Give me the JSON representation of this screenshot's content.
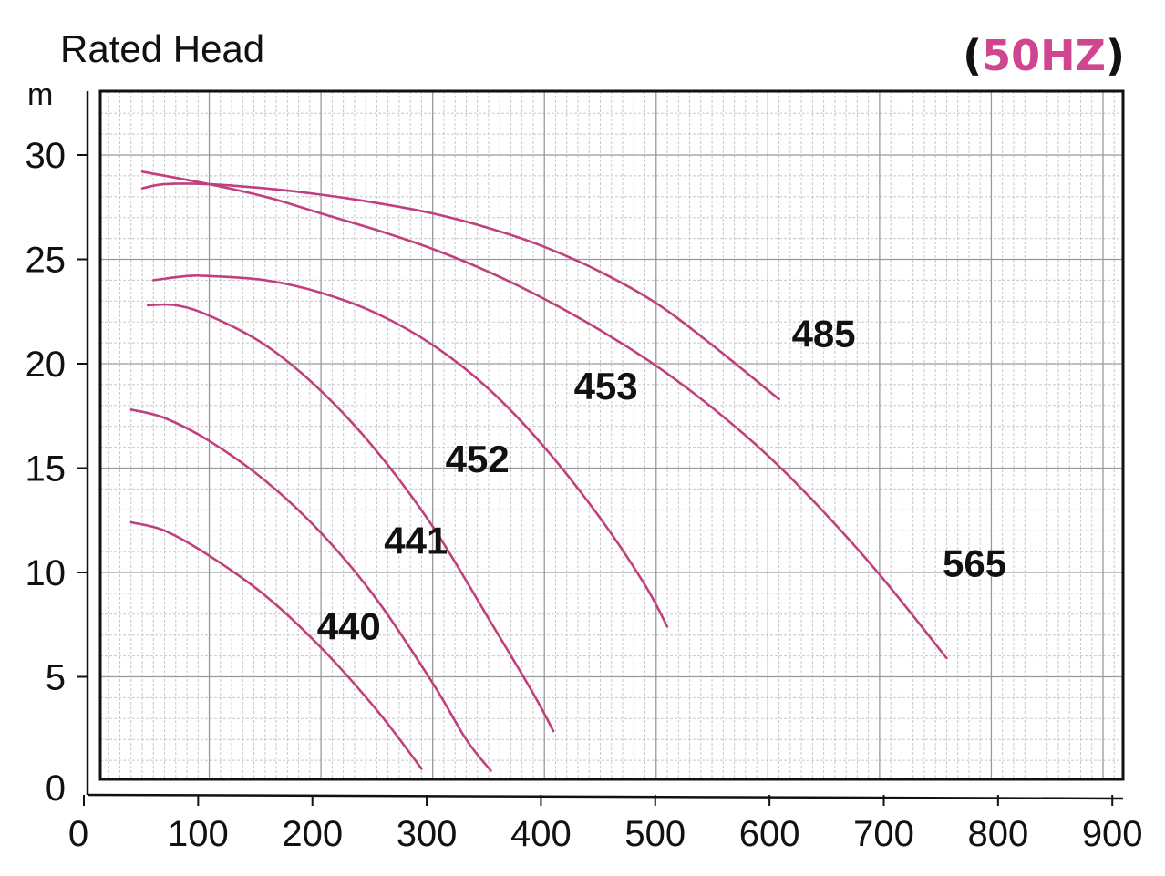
{
  "chart_data": {
    "type": "line",
    "title": "Rated Head",
    "frequency_label": "50HZ",
    "ylabel": "m",
    "xlabel": "",
    "xlim": [
      0,
      900
    ],
    "ylim": [
      0,
      30
    ],
    "x_ticks": [
      "0",
      "100",
      "200",
      "300",
      "400",
      "500",
      "600",
      "700",
      "800",
      "900"
    ],
    "y_ticks": [
      "0",
      "5",
      "10",
      "15",
      "20",
      "25",
      "30"
    ],
    "grid": true,
    "line_color": "#c0407e",
    "series": [
      {
        "name": "440",
        "x": [
          30,
          60,
          100,
          150,
          200,
          250,
          290
        ],
        "y": [
          12.4,
          12.0,
          10.8,
          8.9,
          6.4,
          3.4,
          0.6
        ]
      },
      {
        "name": "441",
        "x": [
          30,
          60,
          100,
          150,
          200,
          250,
          300,
          330,
          352
        ],
        "y": [
          17.8,
          17.4,
          16.3,
          14.4,
          11.9,
          8.7,
          4.7,
          2.0,
          0.5
        ]
      },
      {
        "name": "452",
        "x": [
          45,
          70,
          100,
          150,
          200,
          250,
          300,
          350,
          390,
          408
        ],
        "y": [
          22.8,
          22.8,
          22.3,
          20.9,
          18.7,
          15.8,
          12.2,
          7.8,
          4.2,
          2.4
        ]
      },
      {
        "name": "453",
        "x": [
          50,
          80,
          100,
          150,
          200,
          250,
          300,
          350,
          400,
          450,
          490,
          510
        ],
        "y": [
          24.0,
          24.2,
          24.2,
          24.0,
          23.4,
          22.4,
          20.9,
          18.8,
          16.0,
          12.6,
          9.4,
          7.4
        ]
      },
      {
        "name": "485",
        "x": [
          40,
          60,
          100,
          150,
          200,
          250,
          300,
          350,
          400,
          450,
          500,
          550,
          610
        ],
        "y": [
          28.4,
          28.6,
          28.6,
          28.4,
          28.1,
          27.7,
          27.2,
          26.5,
          25.6,
          24.4,
          22.9,
          20.9,
          18.3
        ]
      },
      {
        "name": "565",
        "x": [
          40,
          100,
          150,
          200,
          250,
          300,
          350,
          400,
          450,
          500,
          550,
          600,
          650,
          700,
          760
        ],
        "y": [
          29.2,
          28.6,
          28.0,
          27.2,
          26.4,
          25.5,
          24.4,
          23.1,
          21.6,
          19.9,
          17.9,
          15.6,
          12.9,
          9.9,
          5.9
        ]
      }
    ],
    "series_labels": [
      {
        "name": "440",
        "x": 225,
        "y": 6.8
      },
      {
        "name": "441",
        "x": 285,
        "y": 10.9
      },
      {
        "name": "452",
        "x": 340,
        "y": 14.8
      },
      {
        "name": "453",
        "x": 455,
        "y": 18.3
      },
      {
        "name": "485",
        "x": 650,
        "y": 20.8
      },
      {
        "name": "565",
        "x": 785,
        "y": 9.8
      }
    ]
  }
}
